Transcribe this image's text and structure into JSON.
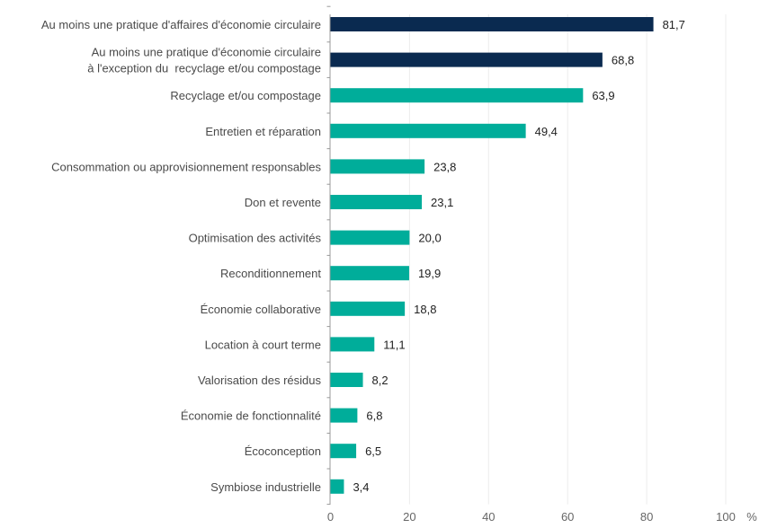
{
  "chart_data": {
    "type": "bar",
    "orientation": "horizontal",
    "categories": [
      "Au moins une pratique d'affaires d'économie circulaire",
      "Au moins une pratique d'économie circulaire\nà l'exception du  recyclage et/ou compostage",
      "Recyclage et/ou compostage",
      "Entretien et réparation",
      "Consommation ou approvisionnement responsables",
      "Don et revente",
      "Optimisation des activités",
      "Reconditionnement",
      "Économie collaborative",
      "Location à court terme",
      "Valorisation des résidus",
      "Économie de fonctionnalité",
      "Écoconception",
      "Symbiose industrielle"
    ],
    "values": [
      81.7,
      68.8,
      63.9,
      49.4,
      23.8,
      23.1,
      20.0,
      19.9,
      18.8,
      11.1,
      8.2,
      6.8,
      6.5,
      3.4
    ],
    "value_labels": [
      "81,7",
      "68,8",
      "63,9",
      "49,4",
      "23,8",
      "23,1",
      "20,0",
      "19,9",
      "18,8",
      "11,1",
      "8,2",
      "6,8",
      "6,5",
      "3,4"
    ],
    "bar_colors": [
      "#0a2a50",
      "#0a2a50",
      "#00ad9a",
      "#00ad9a",
      "#00ad9a",
      "#00ad9a",
      "#00ad9a",
      "#00ad9a",
      "#00ad9a",
      "#00ad9a",
      "#00ad9a",
      "#00ad9a",
      "#00ad9a",
      "#00ad9a"
    ],
    "xlim": [
      0,
      100
    ],
    "xticks": [
      "0",
      "20",
      "40",
      "60",
      "80",
      "100"
    ],
    "xunit": "%",
    "grid": true,
    "title": "",
    "xlabel": "",
    "ylabel": ""
  }
}
